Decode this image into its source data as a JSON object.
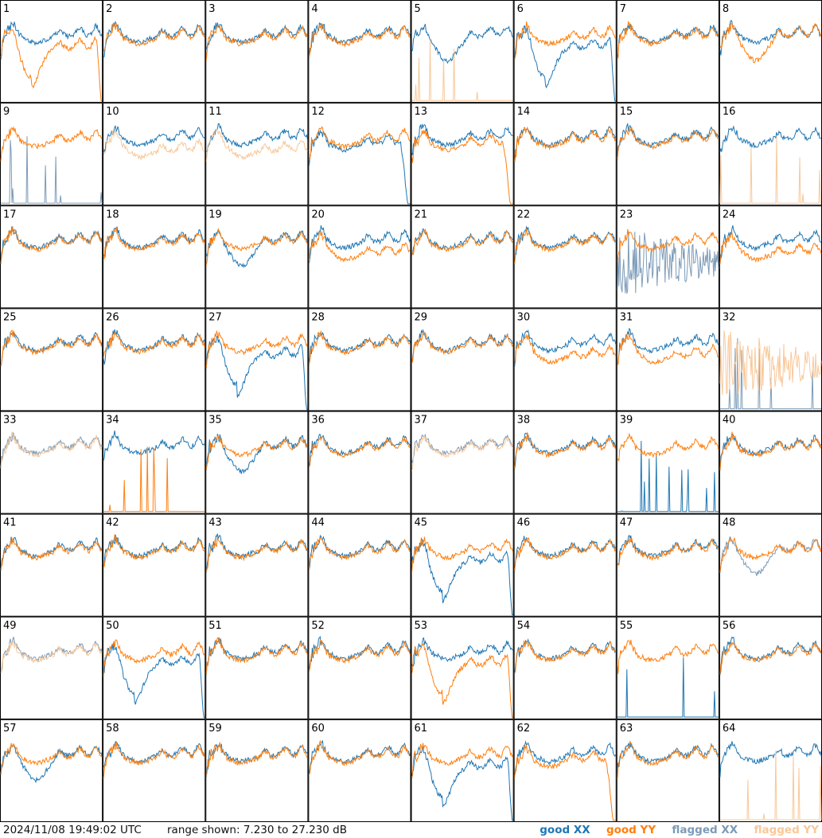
{
  "footer": {
    "timestamp": "2024/11/08 19:49:02 UTC",
    "range_text": "range shown: 7.230 to 27.230 dB",
    "legend": [
      {
        "label": "good XX",
        "color": "#1f77b4"
      },
      {
        "label": "good YY",
        "color": "#ff7f0e"
      },
      {
        "label": "flagged XX",
        "color": "#7c9bb8"
      },
      {
        "label": "flagged YY",
        "color": "#f8c89a"
      }
    ]
  },
  "chart_data": {
    "type": "line",
    "layout": "small-multiples 8x8",
    "ylim_db": [
      7.23,
      27.23
    ],
    "grid": false,
    "legend_position": "bottom-right",
    "colors": {
      "good_xx": "#1f77b4",
      "good_yy": "#ff7f0e",
      "flagged_xx": "#7c9bb8",
      "flagged_yy": "#f8c89a"
    },
    "profiles": {
      "normal": "typical bandpass with peaks",
      "dip": "deep dip then recovery",
      "low": "level lower across band",
      "rolloff": "falls off at high end",
      "spiky": "very noisy spikes at low end",
      "flat_zero": "near floor with isolated spikes",
      "lowmid": "lower in the middle"
    },
    "tiles": [
      {
        "n": "1",
        "xx": {
          "p": "normal",
          "s": "good"
        },
        "yy": {
          "p": "dip",
          "s": "good"
        }
      },
      {
        "n": "2",
        "xx": {
          "p": "normal",
          "s": "good"
        },
        "yy": {
          "p": "normal",
          "s": "good"
        }
      },
      {
        "n": "3",
        "xx": {
          "p": "normal",
          "s": "good"
        },
        "yy": {
          "p": "normal",
          "s": "good"
        }
      },
      {
        "n": "4",
        "xx": {
          "p": "normal",
          "s": "good"
        },
        "yy": {
          "p": "normal",
          "s": "good"
        }
      },
      {
        "n": "5",
        "xx": {
          "p": "lowmid",
          "s": "good"
        },
        "yy": {
          "p": "flat_zero",
          "s": "flagged"
        }
      },
      {
        "n": "6",
        "xx": {
          "p": "dip",
          "s": "good"
        },
        "yy": {
          "p": "normal",
          "s": "good"
        }
      },
      {
        "n": "7",
        "xx": {
          "p": "normal",
          "s": "good"
        },
        "yy": {
          "p": "normal",
          "s": "good"
        }
      },
      {
        "n": "8",
        "xx": {
          "p": "normal",
          "s": "good"
        },
        "yy": {
          "p": "lowmid",
          "s": "good"
        }
      },
      {
        "n": "9",
        "xx": {
          "p": "flat_zero",
          "s": "flagged"
        },
        "yy": {
          "p": "normal",
          "s": "good"
        }
      },
      {
        "n": "10",
        "xx": {
          "p": "normal",
          "s": "good"
        },
        "yy": {
          "p": "low",
          "s": "flagged"
        }
      },
      {
        "n": "11",
        "xx": {
          "p": "normal",
          "s": "good"
        },
        "yy": {
          "p": "low",
          "s": "flagged"
        }
      },
      {
        "n": "12",
        "xx": {
          "p": "rolloff",
          "s": "good"
        },
        "yy": {
          "p": "normal",
          "s": "good"
        }
      },
      {
        "n": "13",
        "xx": {
          "p": "normal",
          "s": "good"
        },
        "yy": {
          "p": "rolloff",
          "s": "good"
        }
      },
      {
        "n": "14",
        "xx": {
          "p": "normal",
          "s": "good"
        },
        "yy": {
          "p": "normal",
          "s": "good"
        }
      },
      {
        "n": "15",
        "xx": {
          "p": "normal",
          "s": "good"
        },
        "yy": {
          "p": "normal",
          "s": "good"
        }
      },
      {
        "n": "16",
        "xx": {
          "p": "normal",
          "s": "good"
        },
        "yy": {
          "p": "flat_zero",
          "s": "flagged"
        }
      },
      {
        "n": "17",
        "xx": {
          "p": "normal",
          "s": "good"
        },
        "yy": {
          "p": "normal",
          "s": "good"
        }
      },
      {
        "n": "18",
        "xx": {
          "p": "normal",
          "s": "good"
        },
        "yy": {
          "p": "normal",
          "s": "good"
        }
      },
      {
        "n": "19",
        "xx": {
          "p": "lowmid",
          "s": "good"
        },
        "yy": {
          "p": "normal",
          "s": "good"
        }
      },
      {
        "n": "20",
        "xx": {
          "p": "normal",
          "s": "good"
        },
        "yy": {
          "p": "low",
          "s": "good"
        }
      },
      {
        "n": "21",
        "xx": {
          "p": "normal",
          "s": "good"
        },
        "yy": {
          "p": "normal",
          "s": "good"
        }
      },
      {
        "n": "22",
        "xx": {
          "p": "normal",
          "s": "good"
        },
        "yy": {
          "p": "normal",
          "s": "good"
        }
      },
      {
        "n": "23",
        "xx": {
          "p": "spiky",
          "s": "flagged"
        },
        "yy": {
          "p": "normal",
          "s": "good"
        }
      },
      {
        "n": "24",
        "xx": {
          "p": "normal",
          "s": "good"
        },
        "yy": {
          "p": "low",
          "s": "good"
        }
      },
      {
        "n": "25",
        "xx": {
          "p": "normal",
          "s": "good"
        },
        "yy": {
          "p": "normal",
          "s": "good"
        }
      },
      {
        "n": "26",
        "xx": {
          "p": "normal",
          "s": "good"
        },
        "yy": {
          "p": "normal",
          "s": "good"
        }
      },
      {
        "n": "27",
        "xx": {
          "p": "dip",
          "s": "good"
        },
        "yy": {
          "p": "normal",
          "s": "good"
        }
      },
      {
        "n": "28",
        "xx": {
          "p": "normal",
          "s": "good"
        },
        "yy": {
          "p": "normal",
          "s": "good"
        }
      },
      {
        "n": "29",
        "xx": {
          "p": "normal",
          "s": "good"
        },
        "yy": {
          "p": "normal",
          "s": "good"
        }
      },
      {
        "n": "30",
        "xx": {
          "p": "normal",
          "s": "good"
        },
        "yy": {
          "p": "low",
          "s": "good"
        }
      },
      {
        "n": "31",
        "xx": {
          "p": "normal",
          "s": "good"
        },
        "yy": {
          "p": "low",
          "s": "good"
        }
      },
      {
        "n": "32",
        "xx": {
          "p": "flat_zero",
          "s": "flagged"
        },
        "yy": {
          "p": "spiky",
          "s": "flagged"
        }
      },
      {
        "n": "33",
        "xx": {
          "p": "normal",
          "s": "flagged"
        },
        "yy": {
          "p": "normal",
          "s": "flagged"
        }
      },
      {
        "n": "34",
        "xx": {
          "p": "normal",
          "s": "good"
        },
        "yy": {
          "p": "flat_zero",
          "s": "good"
        }
      },
      {
        "n": "35",
        "xx": {
          "p": "lowmid",
          "s": "good"
        },
        "yy": {
          "p": "normal",
          "s": "good"
        }
      },
      {
        "n": "36",
        "xx": {
          "p": "normal",
          "s": "good"
        },
        "yy": {
          "p": "normal",
          "s": "good"
        }
      },
      {
        "n": "37",
        "xx": {
          "p": "normal",
          "s": "flagged"
        },
        "yy": {
          "p": "normal",
          "s": "flagged"
        }
      },
      {
        "n": "38",
        "xx": {
          "p": "normal",
          "s": "good"
        },
        "yy": {
          "p": "normal",
          "s": "good"
        }
      },
      {
        "n": "39",
        "xx": {
          "p": "flat_zero",
          "s": "good"
        },
        "yy": {
          "p": "normal",
          "s": "good"
        }
      },
      {
        "n": "40",
        "xx": {
          "p": "normal",
          "s": "good"
        },
        "yy": {
          "p": "normal",
          "s": "good"
        }
      },
      {
        "n": "41",
        "xx": {
          "p": "normal",
          "s": "good"
        },
        "yy": {
          "p": "normal",
          "s": "good"
        }
      },
      {
        "n": "42",
        "xx": {
          "p": "normal",
          "s": "good"
        },
        "yy": {
          "p": "normal",
          "s": "good"
        }
      },
      {
        "n": "43",
        "xx": {
          "p": "normal",
          "s": "good"
        },
        "yy": {
          "p": "normal",
          "s": "good"
        }
      },
      {
        "n": "44",
        "xx": {
          "p": "normal",
          "s": "good"
        },
        "yy": {
          "p": "normal",
          "s": "good"
        }
      },
      {
        "n": "45",
        "xx": {
          "p": "dip",
          "s": "good"
        },
        "yy": {
          "p": "normal",
          "s": "good"
        }
      },
      {
        "n": "46",
        "xx": {
          "p": "normal",
          "s": "good"
        },
        "yy": {
          "p": "normal",
          "s": "good"
        }
      },
      {
        "n": "47",
        "xx": {
          "p": "normal",
          "s": "good"
        },
        "yy": {
          "p": "normal",
          "s": "good"
        }
      },
      {
        "n": "48",
        "xx": {
          "p": "lowmid",
          "s": "flagged"
        },
        "yy": {
          "p": "normal",
          "s": "good"
        }
      },
      {
        "n": "49",
        "xx": {
          "p": "normal",
          "s": "flagged"
        },
        "yy": {
          "p": "normal",
          "s": "flagged"
        }
      },
      {
        "n": "50",
        "xx": {
          "p": "dip",
          "s": "good"
        },
        "yy": {
          "p": "normal",
          "s": "good"
        }
      },
      {
        "n": "51",
        "xx": {
          "p": "normal",
          "s": "good"
        },
        "yy": {
          "p": "normal",
          "s": "good"
        }
      },
      {
        "n": "52",
        "xx": {
          "p": "normal",
          "s": "good"
        },
        "yy": {
          "p": "normal",
          "s": "good"
        }
      },
      {
        "n": "53",
        "xx": {
          "p": "normal",
          "s": "good"
        },
        "yy": {
          "p": "dip",
          "s": "good"
        }
      },
      {
        "n": "54",
        "xx": {
          "p": "normal",
          "s": "good"
        },
        "yy": {
          "p": "normal",
          "s": "good"
        }
      },
      {
        "n": "55",
        "xx": {
          "p": "flat_zero",
          "s": "good"
        },
        "yy": {
          "p": "normal",
          "s": "good"
        }
      },
      {
        "n": "56",
        "xx": {
          "p": "normal",
          "s": "good"
        },
        "yy": {
          "p": "normal",
          "s": "good"
        }
      },
      {
        "n": "57",
        "xx": {
          "p": "lowmid",
          "s": "good"
        },
        "yy": {
          "p": "normal",
          "s": "good"
        }
      },
      {
        "n": "58",
        "xx": {
          "p": "normal",
          "s": "good"
        },
        "yy": {
          "p": "normal",
          "s": "good"
        }
      },
      {
        "n": "59",
        "xx": {
          "p": "normal",
          "s": "good"
        },
        "yy": {
          "p": "normal",
          "s": "good"
        }
      },
      {
        "n": "60",
        "xx": {
          "p": "normal",
          "s": "good"
        },
        "yy": {
          "p": "normal",
          "s": "good"
        }
      },
      {
        "n": "61",
        "xx": {
          "p": "dip",
          "s": "good"
        },
        "yy": {
          "p": "normal",
          "s": "good"
        }
      },
      {
        "n": "62",
        "xx": {
          "p": "normal",
          "s": "good"
        },
        "yy": {
          "p": "rolloff",
          "s": "good"
        }
      },
      {
        "n": "63",
        "xx": {
          "p": "normal",
          "s": "good"
        },
        "yy": {
          "p": "normal",
          "s": "good"
        }
      },
      {
        "n": "64",
        "xx": {
          "p": "normal",
          "s": "good"
        },
        "yy": {
          "p": "flat_zero",
          "s": "flagged"
        }
      }
    ]
  }
}
